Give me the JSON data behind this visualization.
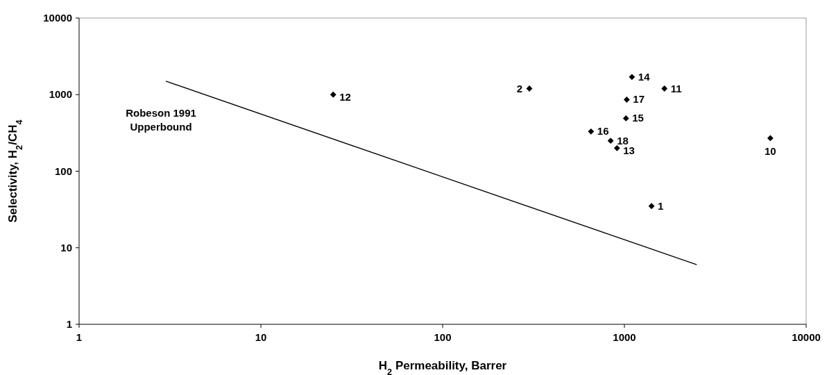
{
  "chart_data": {
    "type": "scatter",
    "xlabel": "H$_{2}$ Permeability, Barrer",
    "ylabel": "Selectivity, H$_{2}$/CH$_{4}$",
    "log": "xy",
    "grid": false,
    "xlim": [
      1,
      10000
    ],
    "xticks": [
      1,
      10,
      100,
      1000,
      10000
    ],
    "ylim": [
      1,
      10000
    ],
    "yticks": [
      1,
      10,
      100,
      1000,
      10000
    ],
    "series": [
      {
        "marker": "diamond",
        "color": "#000000",
        "x": [
          1410,
          300,
          6350,
          1660,
          25,
          910,
          1100,
          1020,
          655,
          1030,
          840
        ],
        "values": [
          35,
          1200,
          270,
          1200,
          1000,
          200,
          1700,
          490,
          330,
          860,
          250
        ]
      },
      {
        "type": "line",
        "marker": "none",
        "line_style": "solid",
        "color": "#000000",
        "x": [
          3,
          2500
        ],
        "values": [
          1500,
          6
        ]
      }
    ],
    "annotations": [
      "Robeson 1991\nUpperbound",
      {
        "text": "1",
        "x": 1410,
        "y": 35
      },
      {
        "text": "2",
        "x": 300,
        "y": 1200
      },
      {
        "text": "10",
        "x": 6350,
        "y": 270
      },
      {
        "text": "11",
        "x": 1660,
        "y": 1200
      },
      {
        "text": "12",
        "x": 25,
        "y": 1000
      },
      {
        "text": "13",
        "x": 910,
        "y": 200
      },
      {
        "text": "14",
        "x": 1100,
        "y": 1700
      },
      {
        "text": "15",
        "x": 1020,
        "y": 490
      },
      {
        "text": "16",
        "x": 655,
        "y": 330
      },
      {
        "text": "17",
        "x": 1030,
        "y": 860
      },
      {
        "text": "18",
        "x": 840,
        "y": 250
      }
    ]
  }
}
